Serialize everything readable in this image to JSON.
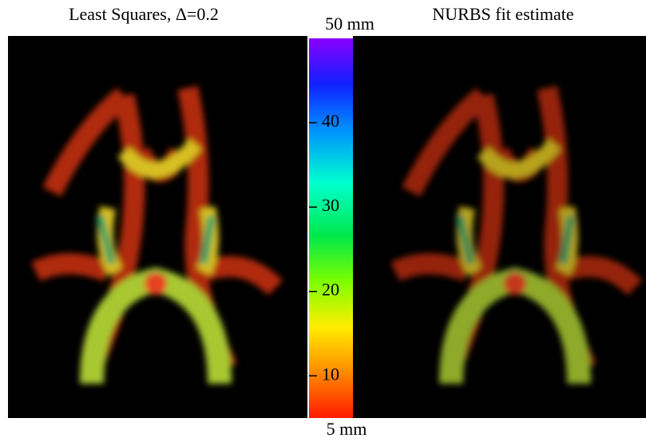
{
  "panels": [
    {
      "title": "Least Squares, Δ=0.2"
    },
    {
      "title": "NURBS fit estimate"
    }
  ],
  "colorbar": {
    "range": [
      5,
      50
    ],
    "ticks": [
      {
        "value": 50,
        "label": "50 mm"
      },
      40,
      30,
      20,
      10,
      {
        "value": 5,
        "label": "5 mm"
      }
    ]
  }
}
